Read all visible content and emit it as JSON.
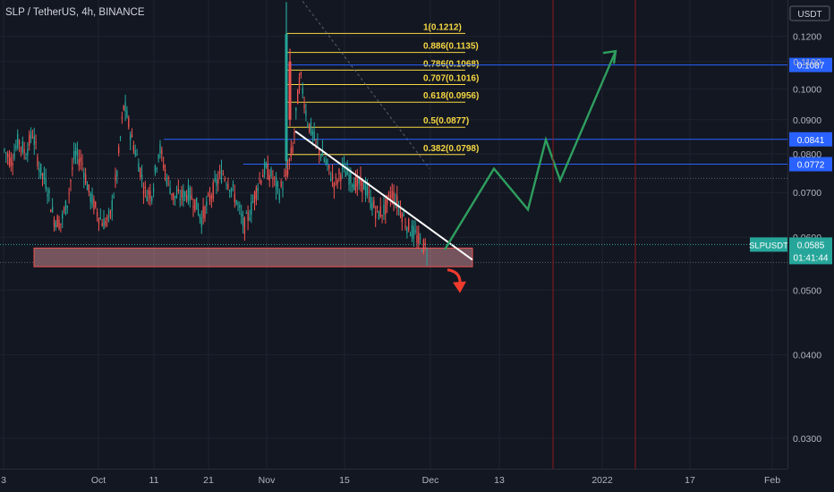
{
  "header": {
    "title": "SLP / TetherUS, 4h, BINANCE"
  },
  "price_scale": {
    "currency": "USDT"
  },
  "colors": {
    "background": "#131722",
    "grid": "#1f2330",
    "candle_up": "#26a69a",
    "candle_down": "#ef5350",
    "fib": "#f5d742",
    "h_line": "#2962ff",
    "trend_line": "#ffffff",
    "projection": "#2e9e5e",
    "arrow_down": "#ef3b2e",
    "support_zone": "#f0a0a8",
    "vline": "#8b1a1a",
    "label_blue": "#2962ff",
    "label_green": "#26a69a"
  },
  "chart_data": {
    "type": "candlestick",
    "symbol": "SLPUSDT",
    "exchange": "BINANCE",
    "timeframe": "4h",
    "x_tick_labels": [
      "3",
      "Oct",
      "11",
      "21",
      "Nov",
      "15",
      "Dec",
      "13",
      "2022",
      "17",
      "Feb"
    ],
    "y_ticks": [
      0.03,
      0.04,
      0.05,
      0.06,
      0.07,
      0.08,
      0.09,
      0.1,
      0.11,
      0.12
    ],
    "y_tick_labels": [
      "0.0300",
      "0.0400",
      "0.0500",
      "0.0600",
      "0.0700",
      "0.0800",
      "0.0900",
      "0.1000",
      "0.1100",
      "0.1200"
    ],
    "ylim": [
      0.027,
      0.136
    ],
    "y_scale": "log",
    "fib_levels": [
      {
        "ratio": "1",
        "price": 0.1212,
        "label": "1(0.1212)"
      },
      {
        "ratio": "0.886",
        "price": 0.1135,
        "label": "0.886(0.1135)"
      },
      {
        "ratio": "0.786",
        "price": 0.1068,
        "label": "0.786(0.1068)"
      },
      {
        "ratio": "0.707",
        "price": 0.1016,
        "label": "0.707(0.1016)"
      },
      {
        "ratio": "0.618",
        "price": 0.0956,
        "label": "0.618(0.0956)"
      },
      {
        "ratio": "0.5",
        "price": 0.0877,
        "label": "0.5(0.0877)"
      },
      {
        "ratio": "0.382",
        "price": 0.0798,
        "label": "0.382(0.0798)"
      }
    ],
    "horizontal_levels": [
      {
        "price": 0.1087,
        "label": "0.1087"
      },
      {
        "price": 0.0841,
        "label": "0.0841"
      },
      {
        "price": 0.0772,
        "label": "0.0772"
      }
    ],
    "support_zone": {
      "low": 0.0542,
      "high": 0.0578
    },
    "last_price": {
      "symbol": "SLPUSDT",
      "price": 0.0585,
      "label": "0.0585",
      "countdown": "01:41:44"
    },
    "price_path": [
      [
        0.081,
        0.08
      ],
      [
        0.078,
        0.083
      ],
      [
        0.084,
        0.082
      ],
      [
        0.08,
        0.095
      ],
      [
        0.086,
        0.08
      ],
      [
        0.076,
        0.075
      ],
      [
        0.072,
        0.068
      ],
      [
        0.064,
        0.06
      ],
      [
        0.063,
        0.065
      ],
      [
        0.068,
        0.075
      ],
      [
        0.08,
        0.088
      ],
      [
        0.078,
        0.072
      ],
      [
        0.07,
        0.068
      ],
      [
        0.066,
        0.064
      ],
      [
        0.063,
        0.062
      ],
      [
        0.064,
        0.07
      ],
      [
        0.075,
        0.085
      ],
      [
        0.095,
        0.088
      ],
      [
        0.085,
        0.082
      ],
      [
        0.078,
        0.074
      ],
      [
        0.07,
        0.068
      ],
      [
        0.07,
        0.076
      ],
      [
        0.082,
        0.078
      ],
      [
        0.074,
        0.07
      ],
      [
        0.069,
        0.068
      ],
      [
        0.069,
        0.07
      ],
      [
        0.07,
        0.069
      ],
      [
        0.068,
        0.066
      ],
      [
        0.064,
        0.066
      ],
      [
        0.068,
        0.07
      ],
      [
        0.072,
        0.074
      ],
      [
        0.075,
        0.073
      ],
      [
        0.072,
        0.07
      ],
      [
        0.068,
        0.065
      ],
      [
        0.062,
        0.064
      ],
      [
        0.066,
        0.068
      ],
      [
        0.072,
        0.074
      ],
      [
        0.076,
        0.078
      ],
      [
        0.074,
        0.071
      ],
      [
        0.07,
        0.072
      ],
      [
        0.074,
        0.07
      ],
      [
        0.082,
        0.12
      ],
      [
        0.105,
        0.095
      ],
      [
        0.09,
        0.086
      ],
      [
        0.084,
        0.082
      ],
      [
        0.08,
        0.078
      ],
      [
        0.076,
        0.074
      ],
      [
        0.072,
        0.073
      ],
      [
        0.076,
        0.075
      ],
      [
        0.074,
        0.072
      ],
      [
        0.072,
        0.074
      ],
      [
        0.072,
        0.07
      ],
      [
        0.068,
        0.066
      ],
      [
        0.065,
        0.064
      ],
      [
        0.066,
        0.068
      ],
      [
        0.07,
        0.069
      ],
      [
        0.067,
        0.065
      ],
      [
        0.063,
        0.062
      ],
      [
        0.061,
        0.06
      ],
      [
        0.059,
        0.058
      ],
      [
        0.0575,
        0.0585
      ]
    ],
    "annotations": [
      {
        "type": "trend_line",
        "from": {
          "x_label": "Nov",
          "price": 0.0865
        },
        "to": {
          "x_label": "Dec",
          "price": 0.0555
        }
      },
      {
        "type": "projection_path",
        "prices": [
          0.0575,
          0.076,
          0.066,
          0.084,
          0.073,
          0.114
        ]
      },
      {
        "type": "arrow_down",
        "price": 0.052
      },
      {
        "type": "vertical_line",
        "x_label": "2022",
        "position": "before"
      },
      {
        "type": "vertical_line",
        "x_label": "2022",
        "position": "after"
      }
    ]
  }
}
